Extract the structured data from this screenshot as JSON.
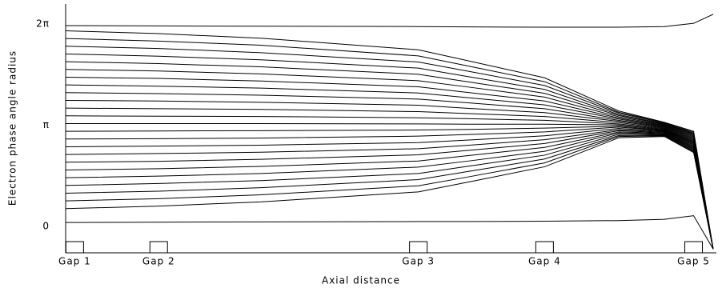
{
  "chart_data": {
    "type": "line",
    "xlabel": "Axial distance",
    "ylabel": "Electron phase angle radius",
    "x": [
      0,
      14.3,
      30,
      54.2,
      62,
      73.6,
      85,
      92,
      96.5,
      99.5
    ],
    "xlim": [
      0,
      100
    ],
    "xticks": [
      {
        "value": 1.4,
        "label": "Gap 1"
      },
      {
        "value": 14.3,
        "label": "Gap 2"
      },
      {
        "value": 54.2,
        "label": "Gap 3"
      },
      {
        "value": 73.6,
        "label": "Gap 4"
      },
      {
        "value": 96.5,
        "label": "Gap 5"
      }
    ],
    "ylim": [
      -0.82,
      6.9
    ],
    "yticks": [
      0,
      {
        "value": 3.1416,
        "label": "π"
      },
      {
        "value": 6.2832,
        "label": "2π"
      }
    ],
    "color": "#000000",
    "series": [
      {
        "values": [
          0.12,
          0.13,
          0.14,
          0.15,
          0.15,
          0.16,
          0.18,
          0.22,
          0.33,
          -0.7
        ]
      },
      {
        "values": [
          0.55,
          0.63,
          0.76,
          1.07,
          1.38,
          1.85,
          2.75,
          2.79,
          2.29,
          -0.7
        ]
      },
      {
        "values": [
          0.79,
          0.86,
          0.98,
          1.26,
          1.54,
          1.97,
          2.79,
          2.81,
          2.32,
          -0.7
        ]
      },
      {
        "values": [
          1.03,
          1.09,
          1.2,
          1.45,
          1.71,
          2.09,
          2.82,
          2.83,
          2.35,
          -0.7
        ]
      },
      {
        "values": [
          1.27,
          1.33,
          1.42,
          1.64,
          1.87,
          2.21,
          2.86,
          2.85,
          2.38,
          -0.7
        ]
      },
      {
        "values": [
          1.51,
          1.56,
          1.64,
          1.84,
          2.03,
          2.33,
          2.9,
          2.87,
          2.4,
          -0.7
        ]
      },
      {
        "values": [
          1.75,
          1.79,
          1.86,
          2.03,
          2.2,
          2.45,
          2.93,
          2.89,
          2.43,
          -0.7
        ]
      },
      {
        "values": [
          1.99,
          2.02,
          2.08,
          2.22,
          2.36,
          2.57,
          2.97,
          2.91,
          2.46,
          -0.7
        ]
      },
      {
        "values": [
          2.23,
          2.26,
          2.3,
          2.41,
          2.52,
          2.69,
          3.0,
          2.93,
          2.49,
          -0.7
        ]
      },
      {
        "values": [
          2.47,
          2.49,
          2.52,
          2.6,
          2.68,
          2.81,
          3.04,
          2.95,
          2.52,
          -0.7
        ]
      },
      {
        "values": [
          2.71,
          2.72,
          2.74,
          2.8,
          2.85,
          2.93,
          3.08,
          2.97,
          2.55,
          -0.7
        ]
      },
      {
        "values": [
          2.95,
          2.96,
          2.97,
          2.99,
          3.01,
          3.05,
          3.11,
          2.98,
          2.58,
          -0.7
        ]
      },
      {
        "values": [
          3.19,
          3.19,
          3.19,
          3.18,
          3.17,
          3.17,
          3.15,
          3.0,
          2.61,
          -0.7
        ]
      },
      {
        "values": [
          3.43,
          3.42,
          3.41,
          3.37,
          3.34,
          3.29,
          3.18,
          3.02,
          2.63,
          -0.7
        ]
      },
      {
        "values": [
          3.67,
          3.65,
          3.63,
          3.56,
          3.5,
          3.41,
          3.22,
          3.04,
          2.66,
          -0.7
        ]
      },
      {
        "values": [
          3.91,
          3.89,
          3.85,
          3.76,
          3.66,
          3.53,
          3.26,
          3.06,
          2.69,
          -0.7
        ]
      },
      {
        "values": [
          4.15,
          4.12,
          4.07,
          3.95,
          3.83,
          3.65,
          3.29,
          3.08,
          2.72,
          -0.7
        ]
      },
      {
        "values": [
          4.39,
          4.35,
          4.29,
          4.14,
          3.99,
          3.77,
          3.33,
          3.1,
          2.75,
          -0.7
        ]
      },
      {
        "values": [
          4.63,
          4.59,
          4.51,
          4.33,
          4.15,
          3.89,
          3.36,
          3.12,
          2.78,
          -0.7
        ]
      },
      {
        "values": [
          4.87,
          4.82,
          4.73,
          4.52,
          4.32,
          4.01,
          3.4,
          3.14,
          2.81,
          -0.7
        ]
      },
      {
        "values": [
          5.11,
          5.05,
          4.95,
          4.72,
          4.48,
          4.13,
          3.44,
          3.16,
          2.84,
          -0.7
        ]
      },
      {
        "values": [
          5.35,
          5.28,
          5.17,
          4.91,
          4.64,
          4.25,
          3.47,
          3.18,
          2.87,
          -0.7
        ]
      },
      {
        "values": [
          5.59,
          5.52,
          5.39,
          5.1,
          4.81,
          4.37,
          3.51,
          3.2,
          2.89,
          -0.7
        ]
      },
      {
        "values": [
          5.83,
          5.75,
          5.62,
          5.29,
          4.97,
          4.49,
          3.54,
          3.22,
          2.92,
          -0.7
        ]
      },
      {
        "values": [
          6.07,
          5.98,
          5.84,
          5.48,
          5.13,
          4.61,
          3.58,
          3.23,
          2.95,
          -0.7
        ]
      },
      {
        "values": [
          6.23,
          6.22,
          6.21,
          6.2,
          6.19,
          6.18,
          6.18,
          6.2,
          6.3,
          6.58
        ]
      }
    ]
  }
}
